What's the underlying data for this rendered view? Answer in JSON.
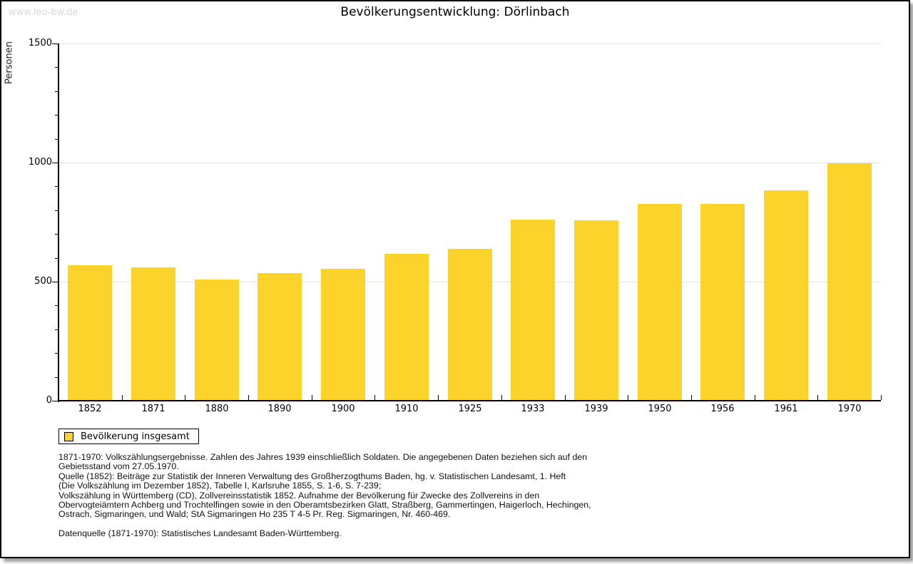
{
  "watermark": "www.leo-bw.de",
  "title": "Bevölkerungsentwicklung: Dörlinbach",
  "chart_data": {
    "type": "bar",
    "title": "Bevölkerungsentwicklung: Dörlinbach",
    "xlabel": "",
    "ylabel": "Personen",
    "ylim": [
      0,
      1500
    ],
    "y_major_ticks": [
      0,
      500,
      1000,
      1500
    ],
    "y_minor_step": 100,
    "grid": "horizontal at major ticks",
    "legend_position": "bottom-left",
    "bar_color": "#FCD32B",
    "categories": [
      "1852",
      "1871",
      "1880",
      "1890",
      "1900",
      "1910",
      "1925",
      "1933",
      "1939",
      "1950",
      "1956",
      "1961",
      "1970"
    ],
    "series": [
      {
        "name": "Bevölkerung insgesamt",
        "values": [
          570,
          560,
          510,
          537,
          554,
          616,
          638,
          760,
          757,
          827,
          827,
          883,
          998
        ]
      }
    ]
  },
  "legend": {
    "label": "Bevölkerung insgesamt",
    "swatch_color": "#FCD32B"
  },
  "footnotes": {
    "blocks": [
      {
        "lines": [
          "1871-1970: Volkszählungsergebnisse. Zahlen des Jahres 1939 einschließlich Soldaten. Die angegebenen Daten beziehen sich auf den",
          "Gebietsstand vom 27.05.1970.",
          "Quelle (1852): Beiträge zur Statistik der Inneren Verwaltung des Großherzogthums Baden, hg. v. Statistischen Landesamt, 1. Heft",
          "(Die Volkszählung im Dezember 1852), Tabelle I, Karlsruhe 1855, S. 1-6, S. 7-239;",
          "Volkszählung in Württemberg (CD), Zollvereinsstatistik 1852. Aufnahme der Bevölkerung für Zwecke des Zollvereins in den",
          "Obervogteiämtern Achberg und Trochtelfingen sowie in den Oberamtsbezirken Glatt, Straßberg, Gammertingen, Haigerloch, Hechingen,",
          "Ostrach, Sigmaringen, und Wald; StA Sigmaringen Ho 235 T 4-5 Pr. Reg. Sigmaringen, Nr. 460-469."
        ]
      },
      {
        "lines": [
          "Datenquelle (1871-1970): Statistisches Landesamt Baden-Württemberg."
        ]
      }
    ]
  }
}
